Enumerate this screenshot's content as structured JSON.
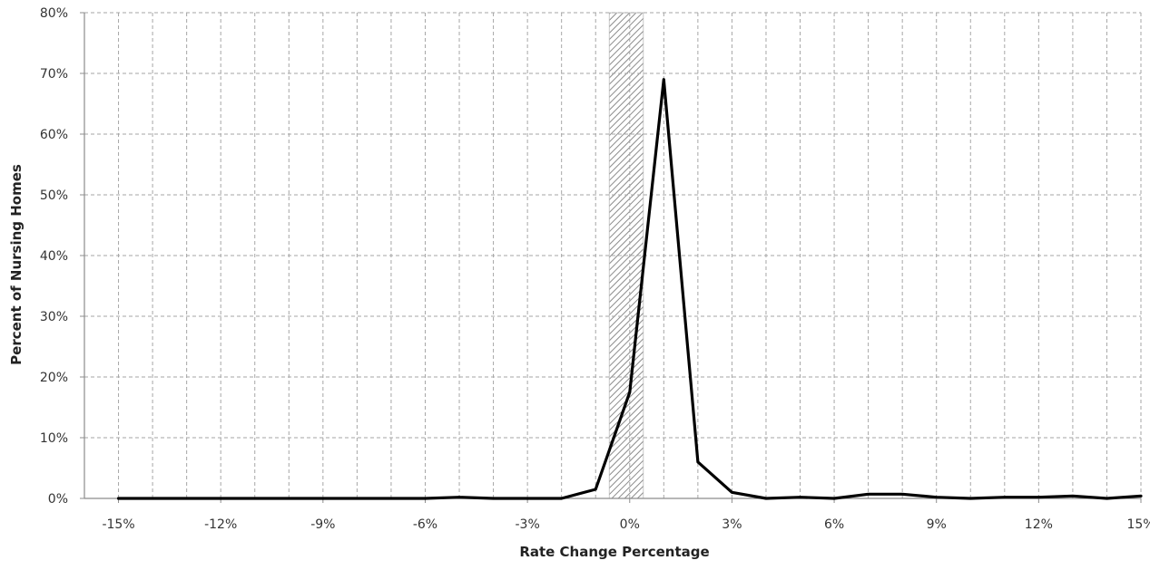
{
  "chart_data": {
    "type": "line",
    "title": "",
    "xlabel": "Rate Change Percentage",
    "ylabel": "Percent of Nursing Homes",
    "xlim": [
      -16,
      15
    ],
    "ylim": [
      0,
      80
    ],
    "x_ticks": [
      -15,
      -12,
      -9,
      -6,
      -3,
      0,
      3,
      6,
      9,
      12,
      15
    ],
    "x_tick_labels": [
      "-15%",
      "-12%",
      "-9%",
      "-6%",
      "-3%",
      "0%",
      "3%",
      "6%",
      "9%",
      "12%",
      "15%"
    ],
    "y_ticks": [
      0,
      10,
      20,
      30,
      40,
      50,
      60,
      70,
      80
    ],
    "y_tick_labels": [
      "0%",
      "10%",
      "20%",
      "30%",
      "40%",
      "50%",
      "60%",
      "70%",
      "80%"
    ],
    "grid": true,
    "shaded_band": {
      "x_start": -0.6,
      "x_end": 0.4,
      "pattern": "diagonal hatch"
    },
    "series": [
      {
        "color": "#000000",
        "x": [
          -15,
          -14,
          -13,
          -12,
          -11,
          -10,
          -9,
          -8,
          -7,
          -6,
          -5,
          -4,
          -3,
          -2,
          -1,
          0,
          1,
          2,
          3,
          4,
          5,
          6,
          7,
          8,
          9,
          10,
          11,
          12,
          13,
          14,
          15
        ],
        "y": [
          0,
          0,
          0,
          0,
          0,
          0,
          0,
          0,
          0,
          0,
          0.2,
          0,
          0,
          0,
          1.5,
          17.5,
          69,
          6,
          1,
          0,
          0.2,
          0,
          0.7,
          0.7,
          0.2,
          0,
          0.2,
          0.2,
          0.4,
          0,
          0.4
        ]
      }
    ]
  }
}
